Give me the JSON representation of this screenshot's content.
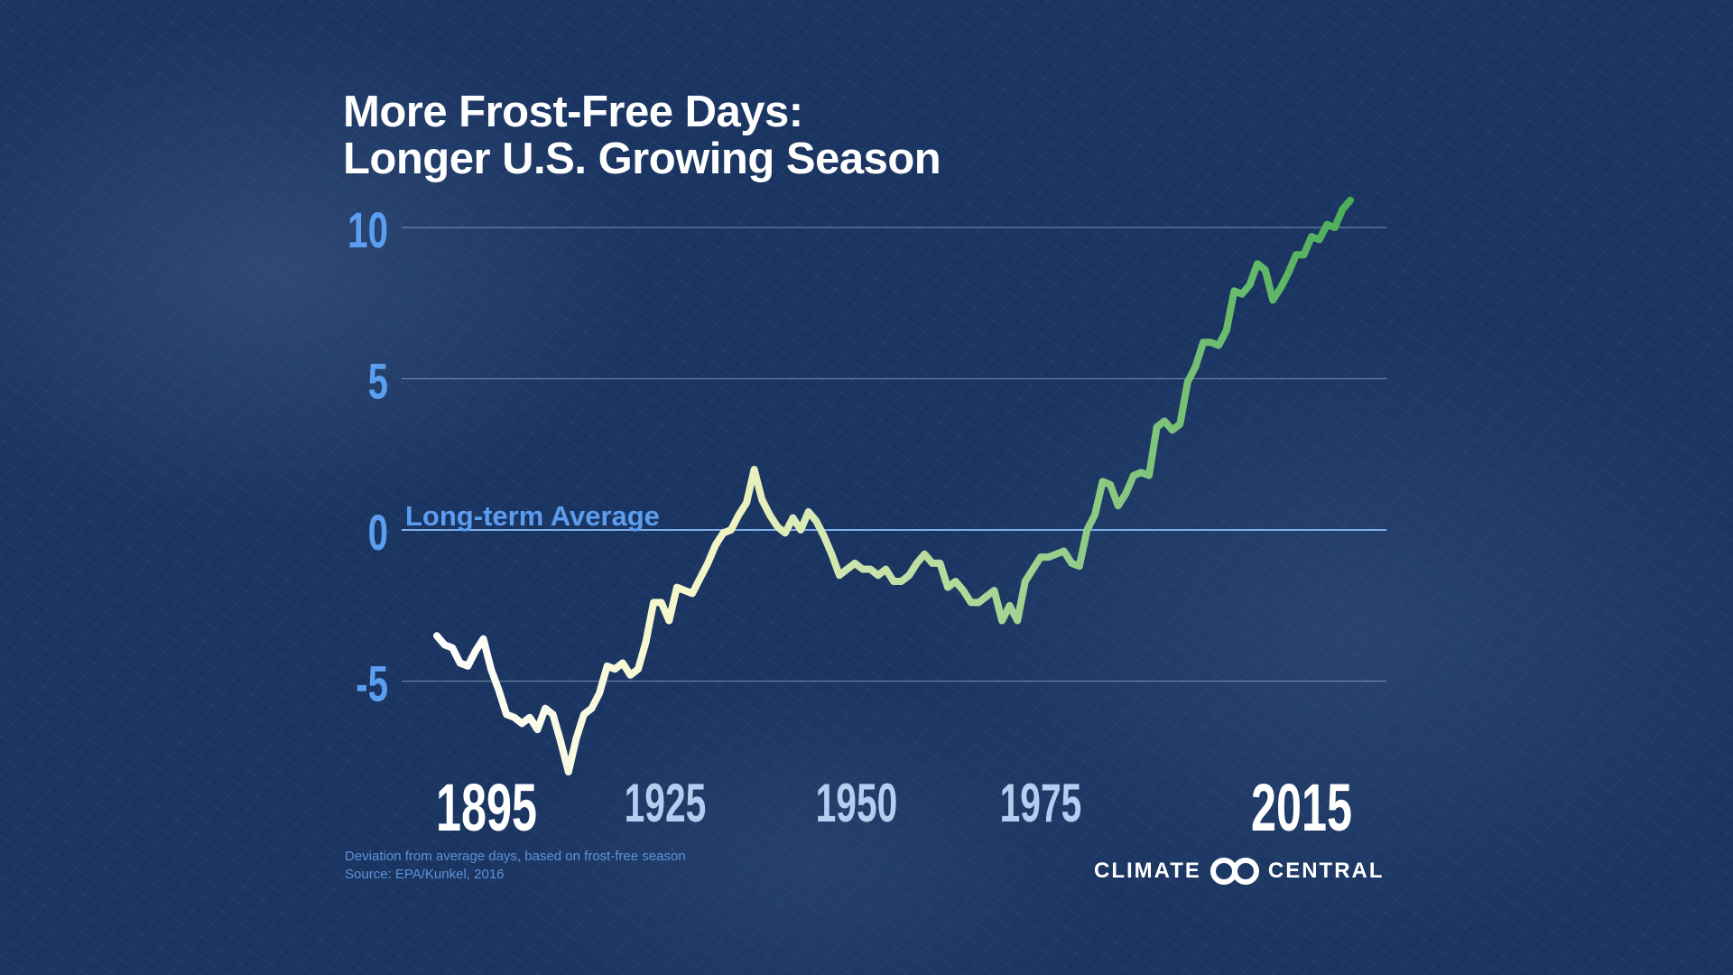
{
  "title_line1": "More Frost-Free Days:",
  "title_line2": "Longer U.S. Growing Season",
  "notes": {
    "line1": "Deviation from average days, based on frost-free season",
    "line2": "Source: EPA/Kunkel, 2016"
  },
  "logo": {
    "left": "CLIMATE",
    "right": "CENTRAL"
  },
  "colors": {
    "background": "#1b3562",
    "axis_label": "#5b9ef0",
    "minor_year": "#b5cdf0",
    "line_start": "#ffffff",
    "line_mid": "#f2f5c4",
    "line_end": "#4cae5a"
  },
  "chart_data": {
    "type": "line",
    "title": "More Frost-Free Days: Longer U.S. Growing Season",
    "xlabel": "",
    "ylabel": "Deviation from average days",
    "x_range": [
      1895,
      2016
    ],
    "ylim": [
      -8.5,
      11
    ],
    "yticks": [
      {
        "value": 10,
        "label": "10"
      },
      {
        "value": 5,
        "label": "5"
      },
      {
        "value": 0,
        "label": "0"
      },
      {
        "value": -5,
        "label": "-5"
      }
    ],
    "xticks": [
      {
        "value": 1895,
        "label": "1895",
        "emphasis": true
      },
      {
        "value": 1925,
        "label": "1925",
        "emphasis": false
      },
      {
        "value": 1950,
        "label": "1950",
        "emphasis": false
      },
      {
        "value": 1975,
        "label": "1975",
        "emphasis": false
      },
      {
        "value": 2015,
        "label": "2015",
        "emphasis": true
      }
    ],
    "annotation": {
      "label": "Long-term Average",
      "value": 0
    },
    "grid": true,
    "series": [
      {
        "name": "Frost-free season deviation",
        "values": [
          -3.5,
          -3.8,
          -3.9,
          -4.4,
          -4.5,
          -4.0,
          -3.6,
          -4.6,
          -5.3,
          -6.1,
          -6.2,
          -6.4,
          -6.2,
          -6.6,
          -5.9,
          -6.1,
          -7.0,
          -8.0,
          -6.9,
          -6.1,
          -5.9,
          -5.4,
          -4.5,
          -4.6,
          -4.4,
          -4.8,
          -4.6,
          -3.7,
          -2.4,
          -2.4,
          -3.0,
          -1.9,
          -2.0,
          -2.1,
          -1.6,
          -1.1,
          -0.5,
          -0.1,
          0.0,
          0.5,
          0.9,
          2.0,
          1.0,
          0.5,
          0.1,
          -0.1,
          0.4,
          0.0,
          0.6,
          0.3,
          -0.2,
          -0.8,
          -1.5,
          -1.3,
          -1.1,
          -1.3,
          -1.3,
          -1.5,
          -1.3,
          -1.7,
          -1.7,
          -1.5,
          -1.1,
          -0.8,
          -1.1,
          -1.1,
          -1.9,
          -1.7,
          -2.0,
          -2.4,
          -2.4,
          -2.2,
          -2.0,
          -3.0,
          -2.5,
          -3.0,
          -1.7,
          -1.3,
          -0.9,
          -0.9,
          -0.8,
          -0.7,
          -1.1,
          -1.2,
          0.0,
          0.5,
          1.6,
          1.5,
          0.8,
          1.2,
          1.8,
          1.9,
          1.8,
          3.4,
          3.6,
          3.3,
          3.5,
          4.9,
          5.4,
          6.2,
          6.2,
          6.1,
          6.6,
          7.9,
          7.8,
          8.1,
          8.8,
          8.6,
          7.6,
          8.0,
          8.5,
          9.1,
          9.1,
          9.7,
          9.6,
          10.1,
          10.0,
          10.6,
          10.9
        ]
      }
    ]
  }
}
